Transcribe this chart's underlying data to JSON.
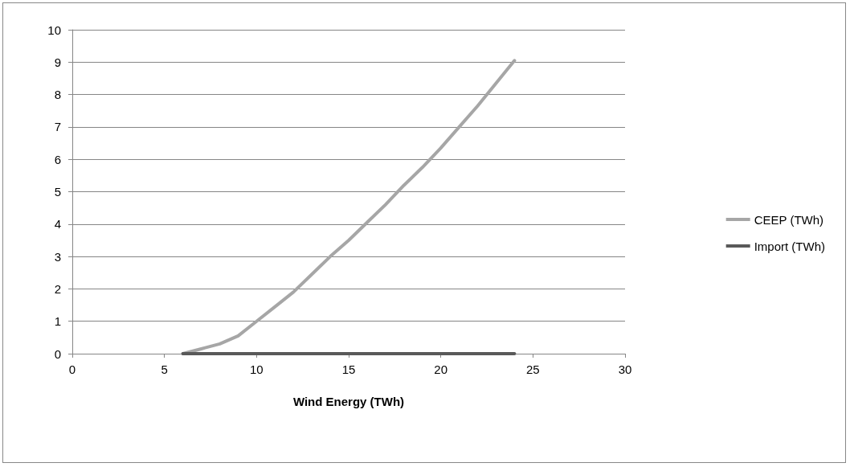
{
  "chart_data": {
    "type": "line",
    "xlabel": "Wind Energy (TWh)",
    "xlim": [
      0,
      30
    ],
    "xticks": [
      0,
      5,
      10,
      15,
      20,
      25,
      30
    ],
    "ylim": [
      0,
      10
    ],
    "yticks": [
      0,
      1,
      2,
      3,
      4,
      5,
      6,
      7,
      8,
      9,
      10
    ],
    "grid": "y",
    "legend": "right",
    "marker": "none",
    "line_style": "solid",
    "series": [
      {
        "name": "CEEP (TWh)",
        "color": "#a6a6a6",
        "x": [
          6,
          7,
          8,
          9,
          10,
          11,
          12,
          13,
          14,
          15,
          16,
          17,
          18,
          19,
          20,
          21,
          22,
          23,
          24
        ],
        "values": [
          0,
          0.15,
          0.3,
          0.55,
          1.0,
          1.45,
          1.9,
          2.45,
          3.0,
          3.5,
          4.05,
          4.6,
          5.2,
          5.75,
          6.35,
          7.0,
          7.65,
          8.35,
          9.05
        ]
      },
      {
        "name": "Import (TWh)",
        "color": "#595959",
        "x": [
          6,
          24
        ],
        "values": [
          0,
          0
        ]
      }
    ]
  }
}
